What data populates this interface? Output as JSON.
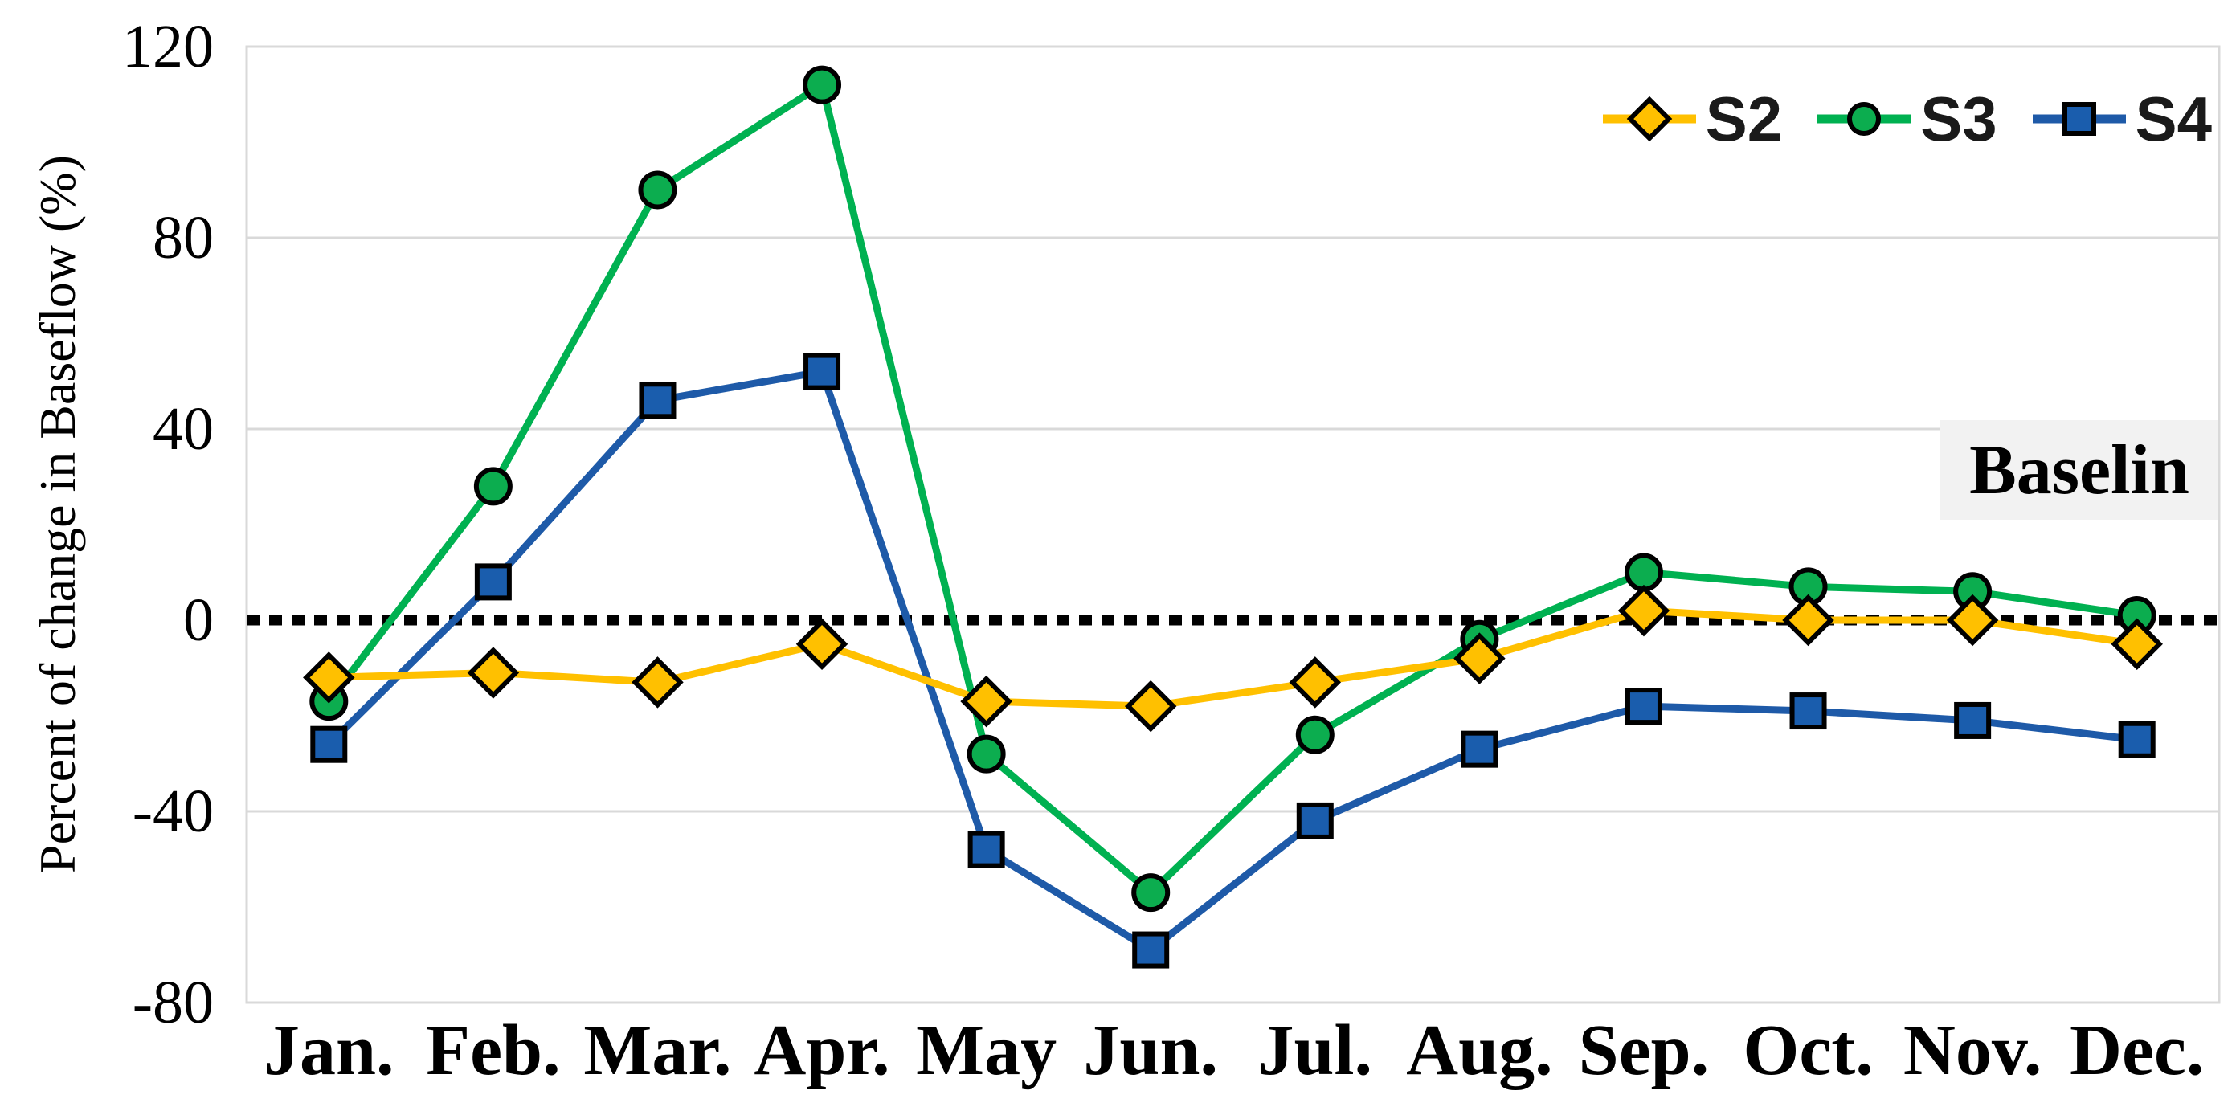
{
  "chart_data": {
    "type": "line",
    "title": "",
    "xlabel": "",
    "ylabel": "Percent of change in Baseflow (%)",
    "ylim": [
      -80,
      120
    ],
    "y_ticks": [
      120,
      80,
      40,
      0,
      -40,
      -80
    ],
    "grid": "horizontal",
    "zero_line_style": "dotted-black",
    "legend_position": "top-right",
    "annotation": "Baselin",
    "categories": [
      "Jan.",
      "Feb.",
      "Mar.",
      "Apr.",
      "May",
      "Jun.",
      "Jul.",
      "Aug.",
      "Sep.",
      "Oct.",
      "Nov.",
      "Dec."
    ],
    "series": [
      {
        "name": "S2",
        "marker": "diamond",
        "line_color": "#FFC000",
        "marker_fill": "#FFC000",
        "marker_stroke": "#000000",
        "values": [
          -12,
          -11,
          -13,
          -5,
          -17,
          -18,
          -13,
          -8,
          2,
          0,
          0,
          -5
        ]
      },
      {
        "name": "S3",
        "marker": "circle",
        "line_color": "#00B151",
        "marker_fill": "#0CAD4F",
        "marker_stroke": "#000000",
        "values": [
          -17,
          28,
          90,
          112,
          -28,
          -57,
          -24,
          -4,
          10,
          7,
          6,
          1
        ]
      },
      {
        "name": "S4",
        "marker": "square",
        "line_color": "#1E5AA8",
        "marker_fill": "#1A5DAD",
        "marker_stroke": "#000000",
        "values": [
          -26,
          8,
          46,
          52,
          -48,
          -69,
          -42,
          -27,
          -18,
          -19,
          -21,
          -25
        ]
      }
    ],
    "colors": {
      "gridline": "#D9D9D9",
      "plot_border": "#D9D9D9",
      "zero_line": "#000000",
      "annotation_bg": "#F2F2F2",
      "text": "#000000"
    }
  }
}
